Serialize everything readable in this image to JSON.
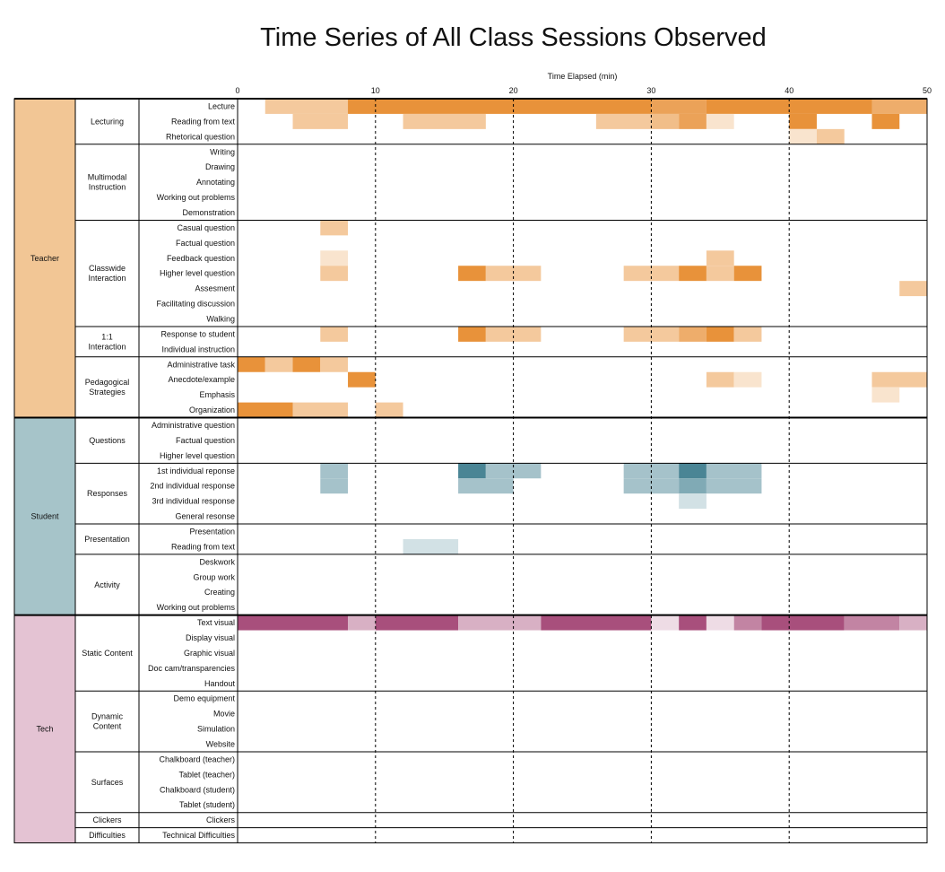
{
  "chart_data": {
    "type": "heatmap",
    "title": "Time Series of All Class Sessions Observed",
    "xlabel": "Time Elapsed (min)",
    "xlim": [
      0,
      50
    ],
    "x_ticks": [
      0,
      10,
      20,
      30,
      40,
      50
    ],
    "bin_minutes": 2,
    "colors": {
      "Teacher": "#e8923a",
      "Student": "#4a8595",
      "Tech": "#a84f7c",
      "Teacher_band": "#f2c695",
      "Student_band": "#a6c4c9",
      "Tech_band": "#e4c3d3"
    },
    "groups": [
      {
        "name": "Teacher",
        "subgroups": [
          {
            "name": "Lecturing",
            "rows": [
              "Lecture",
              "Reading from text",
              "Rhetorical question"
            ]
          },
          {
            "name": "Multimodal Instruction",
            "rows": [
              "Writing",
              "Drawing",
              "Annotating",
              "Working out problems",
              "Demonstration"
            ]
          },
          {
            "name": "Classwide Interaction",
            "rows": [
              "Casual question",
              "Factual question",
              "Feedback question",
              "Higher level question",
              "Assesment",
              "Facilitating discussion",
              "Walking"
            ]
          },
          {
            "name": "1:1 Interaction",
            "rows": [
              "Response to student",
              "Individual instruction"
            ]
          },
          {
            "name": "Pedagogical Strategies",
            "rows": [
              "Administrative task",
              "Anecdote/example",
              "Emphasis",
              "Organization"
            ]
          }
        ]
      },
      {
        "name": "Student",
        "subgroups": [
          {
            "name": "Questions",
            "rows": [
              "Administrative question",
              "Factual question",
              "Higher level question"
            ]
          },
          {
            "name": "Responses",
            "rows": [
              "1st individual reponse",
              "2nd individual response",
              "3rd individual response",
              "General resonse"
            ]
          },
          {
            "name": "Presentation",
            "rows": [
              "Presentation",
              "Reading from text"
            ]
          },
          {
            "name": "Activity",
            "rows": [
              "Deskwork",
              "Group work",
              "Creating",
              "Working out problems"
            ]
          }
        ]
      },
      {
        "name": "Tech",
        "subgroups": [
          {
            "name": "Static Content",
            "rows": [
              "Text visual",
              "Display visual",
              "Graphic visual",
              "Doc cam/transparencies",
              "Handout"
            ]
          },
          {
            "name": "Dynamic Content",
            "rows": [
              "Demo equipment",
              "Movie",
              "Simulation",
              "Website"
            ]
          },
          {
            "name": "Surfaces",
            "rows": [
              "Chalkboard (teacher)",
              "Tablet (teacher)",
              "Chalkboard (student)",
              "Tablet (student)"
            ]
          },
          {
            "name": "Clickers",
            "rows": [
              "Clickers"
            ]
          },
          {
            "name": "Difficulties",
            "rows": [
              "Technical Difficulties"
            ]
          }
        ]
      }
    ],
    "cells": [
      {
        "group": "Teacher",
        "row": "Lecture",
        "segments": [
          [
            2,
            8,
            0.5
          ],
          [
            8,
            30,
            1.0
          ],
          [
            30,
            34,
            0.85
          ],
          [
            34,
            46,
            1.0
          ],
          [
            46,
            50,
            0.75
          ]
        ]
      },
      {
        "group": "Teacher",
        "row": "Reading from text",
        "segments": [
          [
            4,
            8,
            0.5
          ],
          [
            12,
            18,
            0.5
          ],
          [
            26,
            30,
            0.5
          ],
          [
            30,
            32,
            0.6
          ],
          [
            32,
            34,
            0.85
          ],
          [
            34,
            36,
            0.25
          ],
          [
            40,
            42,
            1.0
          ],
          [
            46,
            48,
            1.0
          ]
        ]
      },
      {
        "group": "Teacher",
        "row": "Rhetorical question",
        "segments": [
          [
            40,
            42,
            0.25
          ],
          [
            42,
            44,
            0.5
          ]
        ]
      },
      {
        "group": "Teacher",
        "row": "Casual question",
        "segments": [
          [
            6,
            8,
            0.5
          ]
        ]
      },
      {
        "group": "Teacher",
        "row": "Feedback question",
        "segments": [
          [
            6,
            8,
            0.25
          ],
          [
            34,
            36,
            0.5
          ]
        ]
      },
      {
        "group": "Teacher",
        "row": "Higher level question",
        "segments": [
          [
            6,
            8,
            0.5
          ],
          [
            16,
            18,
            1.0
          ],
          [
            18,
            22,
            0.5
          ],
          [
            28,
            32,
            0.5
          ],
          [
            32,
            34,
            1.0
          ],
          [
            34,
            36,
            0.5
          ],
          [
            36,
            38,
            1.0
          ]
        ]
      },
      {
        "group": "Teacher",
        "row": "Assesment",
        "segments": [
          [
            48,
            50,
            0.5
          ]
        ]
      },
      {
        "group": "Teacher",
        "row": "Response to student",
        "segments": [
          [
            6,
            8,
            0.5
          ],
          [
            16,
            18,
            1.0
          ],
          [
            18,
            22,
            0.5
          ],
          [
            28,
            32,
            0.5
          ],
          [
            32,
            34,
            0.75
          ],
          [
            34,
            36,
            1.0
          ],
          [
            36,
            38,
            0.5
          ]
        ]
      },
      {
        "group": "Teacher",
        "row": "Administrative task",
        "segments": [
          [
            0,
            2,
            1.0
          ],
          [
            2,
            4,
            0.5
          ],
          [
            4,
            6,
            1.0
          ],
          [
            6,
            8,
            0.5
          ]
        ]
      },
      {
        "group": "Teacher",
        "row": "Anecdote/example",
        "segments": [
          [
            8,
            10,
            1.0
          ],
          [
            34,
            36,
            0.5
          ],
          [
            36,
            38,
            0.25
          ],
          [
            46,
            50,
            0.5
          ]
        ]
      },
      {
        "group": "Teacher",
        "row": "Emphasis",
        "segments": [
          [
            46,
            48,
            0.25
          ]
        ]
      },
      {
        "group": "Teacher",
        "row": "Organization",
        "segments": [
          [
            0,
            4,
            1.0
          ],
          [
            4,
            8,
            0.5
          ],
          [
            10,
            12,
            0.5
          ]
        ]
      },
      {
        "group": "Student",
        "row": "1st individual reponse",
        "segments": [
          [
            6,
            8,
            0.5
          ],
          [
            16,
            18,
            1.0
          ],
          [
            18,
            22,
            0.5
          ],
          [
            28,
            32,
            0.5
          ],
          [
            32,
            34,
            1.0
          ],
          [
            34,
            38,
            0.5
          ]
        ]
      },
      {
        "group": "Student",
        "row": "2nd individual response",
        "segments": [
          [
            6,
            8,
            0.5
          ],
          [
            16,
            20,
            0.5
          ],
          [
            28,
            32,
            0.5
          ],
          [
            32,
            34,
            0.7
          ],
          [
            34,
            38,
            0.5
          ]
        ]
      },
      {
        "group": "Student",
        "row": "3rd individual response",
        "segments": [
          [
            32,
            34,
            0.25
          ]
        ]
      },
      {
        "group": "Student",
        "row": "Reading from text",
        "segments": [
          [
            12,
            16,
            0.25
          ]
        ]
      },
      {
        "group": "Tech",
        "row": "Text visual",
        "segments": [
          [
            0,
            8,
            1.0
          ],
          [
            8,
            10,
            0.45
          ],
          [
            10,
            16,
            1.0
          ],
          [
            16,
            22,
            0.45
          ],
          [
            22,
            30,
            1.0
          ],
          [
            30,
            32,
            0.2
          ],
          [
            32,
            34,
            1.0
          ],
          [
            34,
            36,
            0.2
          ],
          [
            36,
            38,
            0.7
          ],
          [
            38,
            44,
            1.0
          ],
          [
            44,
            48,
            0.7
          ],
          [
            48,
            50,
            0.45
          ]
        ]
      }
    ]
  }
}
